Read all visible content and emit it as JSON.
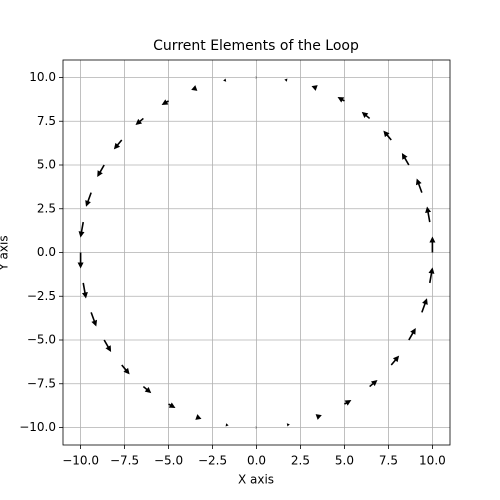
{
  "chart_data": {
    "type": "quiver",
    "title": "Current Elements of the Loop",
    "xlabel": "X axis",
    "ylabel": "Y axis",
    "color": "#000000",
    "grid": true,
    "xlim": [
      -11,
      11
    ],
    "ylim": [
      -11,
      11
    ],
    "xticks": [
      {
        "value": -10,
        "label": "−10.0"
      },
      {
        "value": -7.5,
        "label": "−7.5"
      },
      {
        "value": -5,
        "label": "−5.0"
      },
      {
        "value": -2.5,
        "label": "−2.5"
      },
      {
        "value": 0,
        "label": "0.0"
      },
      {
        "value": 2.5,
        "label": "2.5"
      },
      {
        "value": 5,
        "label": "5.0"
      },
      {
        "value": 7.5,
        "label": "7.5"
      },
      {
        "value": 10,
        "label": "10.0"
      }
    ],
    "yticks": [
      {
        "value": -10,
        "label": "−10.0"
      },
      {
        "value": -7.5,
        "label": "−7.5"
      },
      {
        "value": -5,
        "label": "−5.0"
      },
      {
        "value": -2.5,
        "label": "−2.5"
      },
      {
        "value": 0,
        "label": "0.0"
      },
      {
        "value": 2.5,
        "label": "2.5"
      },
      {
        "value": 5,
        "label": "5.0"
      },
      {
        "value": 7.5,
        "label": "7.5"
      },
      {
        "value": 10,
        "label": "10.0"
      }
    ],
    "x": [
      10,
      9.85,
      9.4,
      8.66,
      7.66,
      6.43,
      5,
      3.42,
      1.74,
      0,
      -1.74,
      -3.42,
      -5,
      -6.43,
      -7.66,
      -8.66,
      -9.4,
      -9.85,
      -10,
      -9.85,
      -9.4,
      -8.66,
      -7.66,
      -6.43,
      -5,
      -3.42,
      -1.74,
      0,
      1.74,
      3.42,
      5,
      6.43,
      7.66,
      8.66,
      9.4,
      9.85
    ],
    "y": [
      0,
      1.74,
      3.42,
      5,
      6.43,
      7.66,
      8.66,
      9.4,
      9.85,
      10,
      9.85,
      9.4,
      8.66,
      7.66,
      6.43,
      5,
      3.42,
      1.74,
      0,
      -1.74,
      -3.42,
      -5,
      -6.43,
      -7.66,
      -8.66,
      -9.4,
      -9.85,
      -10,
      -9.85,
      -9.4,
      -8.66,
      -7.66,
      -6.43,
      -5,
      -3.42,
      -1.74
    ],
    "u": [
      0,
      -0.171,
      -0.321,
      -0.433,
      -0.492,
      -0.492,
      -0.433,
      -0.321,
      -0.171,
      0,
      -0.171,
      -0.321,
      -0.433,
      -0.492,
      -0.492,
      -0.433,
      -0.321,
      -0.171,
      0,
      0.171,
      0.321,
      0.433,
      0.492,
      0.492,
      0.433,
      0.321,
      0.171,
      0,
      0.171,
      0.321,
      0.433,
      0.492,
      0.492,
      0.433,
      0.321,
      0.171
    ],
    "v": [
      1,
      0.97,
      0.883,
      0.75,
      0.587,
      0.413,
      0.25,
      0.117,
      0.03,
      0,
      -0.03,
      -0.117,
      -0.25,
      -0.413,
      -0.587,
      -0.75,
      -0.883,
      -0.97,
      -1,
      -0.97,
      -0.883,
      -0.75,
      -0.587,
      -0.413,
      -0.25,
      -0.117,
      -0.03,
      0,
      0.03,
      0.117,
      0.25,
      0.413,
      0.587,
      0.75,
      0.883,
      0.97
    ]
  }
}
